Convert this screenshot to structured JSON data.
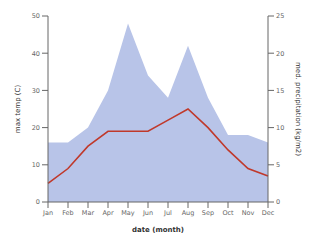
{
  "chart_data": {
    "type": "line",
    "categories": [
      "Jan",
      "Feb",
      "Mar",
      "Apr",
      "May",
      "Jun",
      "Jul",
      "Aug",
      "Sep",
      "Oct",
      "Nov",
      "Dec"
    ],
    "series": [
      {
        "type": "area",
        "color": "#b8c4e8",
        "axis": "y2",
        "values": [
          8,
          8,
          10,
          15,
          24,
          17,
          14,
          21,
          14,
          9,
          9,
          8
        ]
      },
      {
        "type": "line",
        "color": "#c0392b",
        "values": [
          5,
          9,
          15,
          19,
          19,
          19,
          22,
          25,
          20,
          14,
          9,
          7
        ]
      }
    ],
    "xlabel": "date (month)",
    "ylabel": "max temp (C)",
    "y2label": "med. precipitation (kg/m2)",
    "ylim": [
      0,
      50
    ],
    "yticks": [
      0,
      10,
      20,
      30,
      40,
      50
    ],
    "y2lim": [
      0,
      25
    ],
    "y2ticks": [
      0,
      5,
      10,
      15,
      20,
      25
    ],
    "grid": false
  }
}
